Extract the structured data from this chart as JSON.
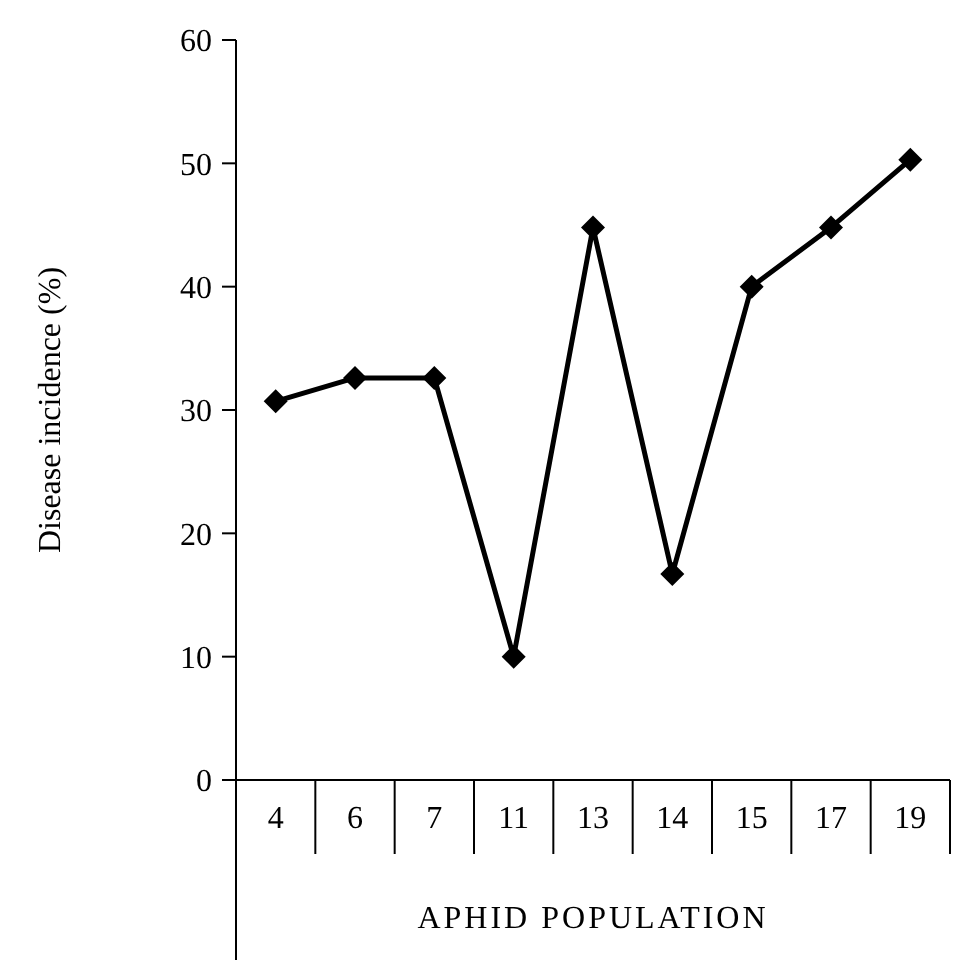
{
  "chart_data": {
    "type": "line",
    "xlabel": "APHID POPULATION",
    "ylabel": "Disease incidence (%)",
    "categories": [
      "4",
      "6",
      "7",
      "11",
      "13",
      "14",
      "15",
      "17",
      "19"
    ],
    "series": [
      {
        "color": "#000000",
        "values": [
          30.7,
          32.6,
          32.6,
          10,
          44.8,
          16.7,
          40,
          44.8,
          50.3
        ]
      }
    ],
    "ylim": [
      0,
      60
    ],
    "yticks": [
      0,
      10,
      20,
      30,
      40,
      50,
      60
    ],
    "grid": false,
    "marker": "diamond",
    "line_style": "solid"
  }
}
